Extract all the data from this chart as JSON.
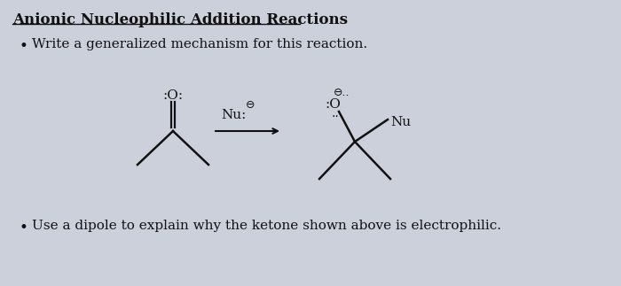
{
  "title": "Anionic Nucleophilic Addition Reactions",
  "bullet1": "Write a generalized mechanism for this reaction.",
  "bullet2": "Use a dipole to explain why the ketone shown above is electrophilic.",
  "bg_color": "#ccd0db",
  "text_color": "#111111",
  "fig_width": 7.0,
  "fig_height": 3.23,
  "dpi": 100
}
